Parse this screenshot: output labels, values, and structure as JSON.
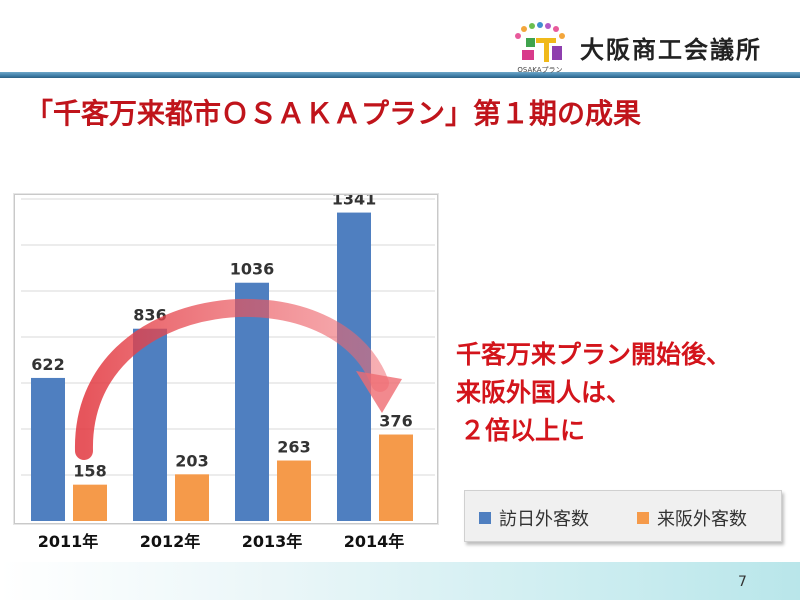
{
  "header": {
    "org_name": "大阪商工会議所",
    "logo_caption": "OSAKAプラン",
    "accent_color": "#2c5f82"
  },
  "slide": {
    "title": "「千客万来都市ＯＳＡＫＡプラン」第１期の成果",
    "title_color": "#c0141b",
    "page_number": "7"
  },
  "caption": {
    "line1": "千客万来プラン開始後、",
    "line2": "来阪外国人は、",
    "line3": "２倍以上に",
    "color": "#d3141b"
  },
  "legend": {
    "items": [
      {
        "label": "訪日外客数",
        "color": "#4f7fc0"
      },
      {
        "label": "来阪外客数",
        "color": "#f59a4a"
      }
    ]
  },
  "chart_data": {
    "type": "bar",
    "categories": [
      "2011年",
      "2012年",
      "2013年",
      "2014年"
    ],
    "series": [
      {
        "name": "訪日外客数",
        "values": [
          622,
          836,
          1036,
          1341
        ],
        "color": "#4f7fc0"
      },
      {
        "name": "来阪外客数",
        "values": [
          158,
          203,
          263,
          376
        ],
        "color": "#f59a4a"
      }
    ],
    "ylim": [
      0,
      1400
    ],
    "grid": true,
    "legend_position": "right-bottom",
    "annotation": "curved red arrow from 2011 来阪外客数 to 2014 来阪外客数"
  }
}
